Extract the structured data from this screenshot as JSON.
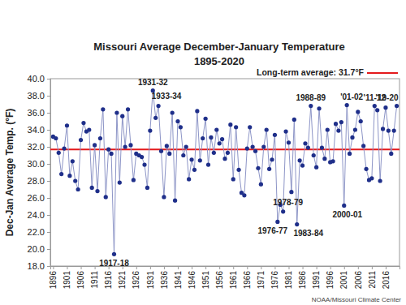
{
  "chart_data": {
    "type": "line",
    "title": "Missouri Average December-January Temperature",
    "subtitle": "1895-2020",
    "y_label": "Dec-Jan Average Temp. (°F)",
    "source": "NOAA/Missouri Climate Center",
    "x": [
      1896,
      1897,
      1898,
      1899,
      1900,
      1901,
      1902,
      1903,
      1904,
      1905,
      1906,
      1907,
      1908,
      1909,
      1910,
      1911,
      1912,
      1913,
      1914,
      1915,
      1916,
      1917,
      1918,
      1919,
      1920,
      1921,
      1922,
      1923,
      1924,
      1925,
      1926,
      1927,
      1928,
      1929,
      1930,
      1931,
      1932,
      1933,
      1934,
      1935,
      1936,
      1937,
      1938,
      1939,
      1940,
      1941,
      1942,
      1943,
      1944,
      1945,
      1946,
      1947,
      1948,
      1949,
      1950,
      1951,
      1952,
      1953,
      1954,
      1955,
      1956,
      1957,
      1958,
      1959,
      1960,
      1961,
      1962,
      1963,
      1964,
      1965,
      1966,
      1967,
      1968,
      1969,
      1970,
      1971,
      1972,
      1973,
      1974,
      1975,
      1976,
      1977,
      1978,
      1979,
      1980,
      1981,
      1982,
      1983,
      1984,
      1985,
      1986,
      1987,
      1988,
      1989,
      1990,
      1991,
      1992,
      1993,
      1994,
      1995,
      1996,
      1997,
      1998,
      1999,
      2000,
      2001,
      2002,
      2003,
      2004,
      2005,
      2006,
      2007,
      2008,
      2009,
      2010,
      2011,
      2012,
      2013,
      2014,
      2015,
      2016,
      2017,
      2018,
      2019,
      2020
    ],
    "values": [
      33.2,
      33.0,
      31.3,
      28.8,
      31.8,
      34.5,
      28.6,
      30.3,
      28.0,
      27.0,
      32.8,
      34.8,
      33.8,
      34.0,
      27.2,
      32.2,
      26.8,
      33.0,
      36.4,
      26.1,
      31.7,
      31.2,
      19.4,
      36.0,
      27.8,
      35.6,
      32.0,
      36.4,
      32.2,
      28.1,
      31.2,
      31.0,
      30.8,
      29.9,
      27.2,
      33.9,
      38.6,
      35.4,
      36.8,
      31.5,
      26.1,
      32.1,
      31.2,
      36.0,
      25.7,
      35.0,
      34.3,
      31.0,
      32.0,
      28.2,
      30.5,
      29.3,
      36.2,
      30.4,
      33.0,
      35.3,
      29.9,
      33.1,
      31.3,
      34.0,
      32.4,
      32.9,
      30.6,
      31.3,
      34.6,
      28.2,
      34.3,
      29.3,
      26.6,
      26.3,
      31.8,
      34.3,
      32.0,
      31.5,
      29.5,
      27.6,
      32.0,
      34.0,
      29.4,
      30.5,
      33.4,
      23.2,
      25.2,
      24.4,
      33.8,
      32.5,
      26.7,
      35.2,
      22.9,
      30.4,
      29.8,
      32.4,
      31.9,
      36.8,
      31.0,
      29.6,
      36.5,
      31.9,
      30.6,
      34.0,
      30.2,
      30.3,
      34.7,
      33.9,
      34.9,
      25.1,
      36.9,
      31.2,
      33.1,
      34.0,
      36.1,
      35.0,
      32.1,
      29.4,
      28.1,
      28.3,
      36.8,
      36.3,
      28.0,
      34.1,
      36.6,
      33.9,
      31.2,
      33.9,
      36.8
    ],
    "color": "#1f2f8a",
    "marker": "circle",
    "xlim": [
      1895,
      2021
    ],
    "xticks": [
      1896,
      1901,
      1906,
      1911,
      1916,
      1921,
      1926,
      1931,
      1936,
      1941,
      1946,
      1951,
      1956,
      1961,
      1966,
      1971,
      1976,
      1981,
      1986,
      1991,
      1996,
      2001,
      2006,
      2011,
      2016
    ],
    "ylim": [
      18,
      40
    ],
    "yticks": [
      {
        "value": 18,
        "label": "18.0"
      },
      {
        "value": 20,
        "label": "20.0"
      },
      {
        "value": 22,
        "label": "22.0"
      },
      {
        "value": 24,
        "label": "24.0"
      },
      {
        "value": 26,
        "label": "26.0"
      },
      {
        "value": 28,
        "label": "28.0"
      },
      {
        "value": 30,
        "label": "30.0"
      },
      {
        "value": 32,
        "label": "32.0"
      },
      {
        "value": 34,
        "label": "34.0"
      },
      {
        "value": 36,
        "label": "36.0"
      },
      {
        "value": 38,
        "label": "38.0"
      },
      {
        "value": 40,
        "label": "40.0"
      }
    ],
    "grid": false,
    "legend": "top-right",
    "reference_line": {
      "value": 31.7,
      "label": "Long-term average: 31.7°F",
      "color": "#e41a1c"
    },
    "annotations": [
      {
        "text": "1917-18",
        "x": 1918
      },
      {
        "text": "1931-32",
        "x": 1932
      },
      {
        "text": "1933-34",
        "x": 1934
      },
      {
        "text": "1976-77",
        "x": 1977
      },
      {
        "text": "1978-79",
        "x": 1979
      },
      {
        "text": "1983-84",
        "x": 1984
      },
      {
        "text": "1988-89",
        "x": 1989
      },
      {
        "text": "2000-01",
        "x": 2001
      },
      {
        "text": "'01-02",
        "x": 2002
      },
      {
        "text": "'11-12",
        "x": 2012
      },
      {
        "text": "'19-20",
        "x": 2020
      }
    ]
  }
}
